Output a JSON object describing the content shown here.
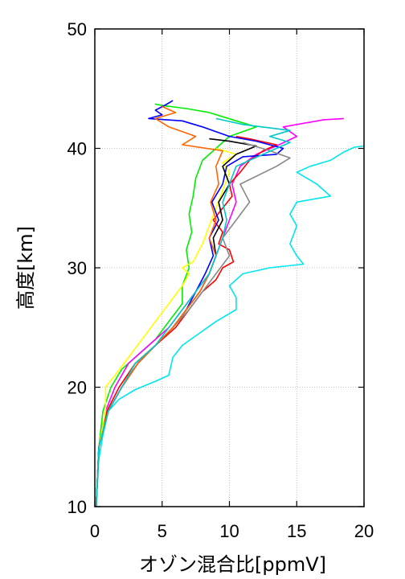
{
  "chart_data": {
    "type": "line",
    "xlabel": "オゾン混合比[ppmV]",
    "ylabel": "高度[km]",
    "xlim": [
      0,
      20
    ],
    "ylim": [
      10,
      50
    ],
    "xticks": [
      0,
      5,
      10,
      15,
      20
    ],
    "yticks": [
      10,
      20,
      30,
      40,
      50
    ],
    "grid": true,
    "series": [
      {
        "color": "#00e5ee",
        "points": [
          [
            0.1,
            10
          ],
          [
            0.3,
            14
          ],
          [
            0.6,
            16
          ],
          [
            1.0,
            18
          ],
          [
            1.8,
            19
          ],
          [
            3,
            19.8
          ],
          [
            4.5,
            20.5
          ],
          [
            5.5,
            21
          ],
          [
            5.8,
            22.5
          ],
          [
            6.5,
            23.5
          ],
          [
            7.5,
            24.3
          ],
          [
            9,
            25.5
          ],
          [
            10.5,
            26.5
          ],
          [
            10.5,
            27.5
          ],
          [
            10,
            28.5
          ],
          [
            11,
            29.5
          ],
          [
            13,
            30
          ],
          [
            15.5,
            30.3
          ],
          [
            15,
            31
          ],
          [
            14.5,
            32
          ],
          [
            15,
            33.5
          ],
          [
            14.5,
            34.5
          ],
          [
            15,
            35.5
          ],
          [
            17.5,
            36
          ],
          [
            16.5,
            37
          ],
          [
            15,
            38
          ],
          [
            16,
            38.5
          ],
          [
            17.5,
            39
          ],
          [
            18.5,
            39.7
          ],
          [
            19.3,
            40.1
          ],
          [
            20,
            40.2
          ]
        ]
      },
      {
        "color": "#00ee00",
        "points": [
          [
            0.1,
            10
          ],
          [
            0.3,
            15
          ],
          [
            0.6,
            18
          ],
          [
            1.2,
            20
          ],
          [
            2,
            21.5
          ],
          [
            3,
            22.5
          ],
          [
            4.5,
            24
          ],
          [
            5.5,
            25.5
          ],
          [
            6.5,
            27
          ],
          [
            6.5,
            28.5
          ],
          [
            7,
            30
          ],
          [
            6.8,
            31.5
          ],
          [
            7.2,
            33
          ],
          [
            7,
            34.5
          ],
          [
            7.3,
            36
          ],
          [
            7.5,
            37.5
          ],
          [
            8,
            39
          ],
          [
            9,
            40
          ],
          [
            10,
            41
          ],
          [
            12,
            41.8
          ],
          [
            10.5,
            42.3
          ],
          [
            8.5,
            43
          ],
          [
            7,
            43.3
          ],
          [
            5,
            43.6
          ],
          [
            4.5,
            43.7
          ],
          [
            5.5,
            43.5
          ]
        ]
      },
      {
        "color": "#ff00ff",
        "points": [
          [
            0.1,
            10
          ],
          [
            0.3,
            15
          ],
          [
            0.8,
            18
          ],
          [
            1.5,
            20
          ],
          [
            2.5,
            22
          ],
          [
            4,
            23.5
          ],
          [
            5.5,
            25
          ],
          [
            6.5,
            26.5
          ],
          [
            7.5,
            28
          ],
          [
            8.5,
            29.5
          ],
          [
            9,
            31
          ],
          [
            9.5,
            32.5
          ],
          [
            10,
            34
          ],
          [
            10.5,
            35.5
          ],
          [
            10.2,
            37
          ],
          [
            10.8,
            38.5
          ],
          [
            12,
            39.5
          ],
          [
            13.5,
            40.2
          ],
          [
            15,
            41
          ],
          [
            14,
            41.8
          ],
          [
            17,
            42.4
          ],
          [
            18.5,
            42.5
          ]
        ]
      },
      {
        "color": "#ff0000",
        "points": [
          [
            0.1,
            10
          ],
          [
            0.3,
            15
          ],
          [
            0.9,
            18
          ],
          [
            1.8,
            20
          ],
          [
            3,
            22
          ],
          [
            4.5,
            23.5
          ],
          [
            6,
            25
          ],
          [
            7,
            26.5
          ],
          [
            8,
            28
          ],
          [
            9,
            29
          ],
          [
            9.5,
            30
          ],
          [
            10.3,
            30.5
          ],
          [
            10,
            31.5
          ],
          [
            9.2,
            32
          ],
          [
            9.5,
            33
          ],
          [
            8.8,
            34
          ],
          [
            9.5,
            35
          ],
          [
            10.2,
            36
          ],
          [
            10,
            37
          ],
          [
            10.8,
            38
          ],
          [
            11.5,
            39
          ],
          [
            12.5,
            39.8
          ],
          [
            13.5,
            40.3
          ],
          [
            11.5,
            40.8
          ],
          [
            10.5,
            41
          ]
        ]
      },
      {
        "color": "#ffff00",
        "points": [
          [
            0.1,
            10
          ],
          [
            0.3,
            15
          ],
          [
            0.8,
            18
          ],
          [
            0.8,
            20
          ],
          [
            1.5,
            21
          ],
          [
            2.5,
            22.5
          ],
          [
            3.5,
            24
          ],
          [
            4.5,
            25.5
          ],
          [
            5.5,
            27
          ],
          [
            6.5,
            28.5
          ],
          [
            7,
            29.5
          ],
          [
            6.5,
            30
          ],
          [
            7.3,
            30.5
          ],
          [
            8,
            32
          ],
          [
            8.5,
            33.5
          ],
          [
            9,
            35
          ],
          [
            9.5,
            36.5
          ],
          [
            10,
            38
          ],
          [
            9.5,
            38.8
          ],
          [
            10.5,
            39.5
          ],
          [
            9,
            40
          ]
        ]
      },
      {
        "color": "#0000ff",
        "points": [
          [
            0.1,
            10
          ],
          [
            0.3,
            15
          ],
          [
            1,
            18
          ],
          [
            2,
            20
          ],
          [
            3.2,
            22
          ],
          [
            4.5,
            23.5
          ],
          [
            5.8,
            25
          ],
          [
            6.8,
            26.5
          ],
          [
            7.5,
            28
          ],
          [
            8.2,
            29.5
          ],
          [
            8.8,
            31
          ],
          [
            8.5,
            32.5
          ],
          [
            9.2,
            34
          ],
          [
            8.7,
            35.5
          ],
          [
            9.5,
            37
          ],
          [
            9.8,
            38.5
          ],
          [
            11,
            39.3
          ],
          [
            13.5,
            39.5
          ],
          [
            14,
            40
          ],
          [
            12,
            40.6
          ],
          [
            10,
            41
          ],
          [
            8,
            41.8
          ],
          [
            6.5,
            42.3
          ],
          [
            4,
            42.5
          ],
          [
            5,
            42.8
          ],
          [
            4.5,
            43.2
          ],
          [
            5.2,
            43.6
          ],
          [
            5.8,
            44
          ]
        ]
      },
      {
        "color": "#000000",
        "points": [
          [
            0.1,
            10
          ],
          [
            0.3,
            15
          ],
          [
            1,
            18
          ],
          [
            2,
            20
          ],
          [
            3.2,
            22
          ],
          [
            4.5,
            23.5
          ],
          [
            5.8,
            25
          ],
          [
            6.8,
            26.5
          ],
          [
            7.8,
            28
          ],
          [
            8.5,
            29.5
          ],
          [
            9,
            31
          ],
          [
            8.8,
            32.5
          ],
          [
            9.5,
            34
          ],
          [
            9.2,
            35.5
          ],
          [
            10,
            37
          ],
          [
            9.5,
            38.5
          ],
          [
            10.5,
            39.5
          ],
          [
            12,
            40.2
          ],
          [
            10,
            40.6
          ],
          [
            8.5,
            40.8
          ]
        ]
      },
      {
        "color": "#888888",
        "points": [
          [
            0.1,
            10
          ],
          [
            0.3,
            15
          ],
          [
            1,
            18
          ],
          [
            2,
            20
          ],
          [
            3.2,
            22
          ],
          [
            4.5,
            23.5
          ],
          [
            5.8,
            25
          ],
          [
            7,
            26.5
          ],
          [
            8,
            28
          ],
          [
            9,
            29.5
          ],
          [
            10,
            31
          ],
          [
            9.5,
            32.5
          ],
          [
            10.5,
            34
          ],
          [
            11.5,
            35.5
          ],
          [
            10.8,
            37
          ],
          [
            13.5,
            38.5
          ],
          [
            14.5,
            39.2
          ],
          [
            13,
            39.8
          ],
          [
            11,
            40.5
          ]
        ]
      },
      {
        "color": "#ff6600",
        "points": [
          [
            0.1,
            10
          ],
          [
            0.3,
            15
          ],
          [
            1,
            18
          ],
          [
            2,
            20
          ],
          [
            3.2,
            22
          ],
          [
            4.5,
            23.5
          ],
          [
            5.8,
            25
          ],
          [
            6.8,
            26.5
          ],
          [
            7.8,
            28
          ],
          [
            8.5,
            29.5
          ],
          [
            9,
            31
          ],
          [
            8.5,
            32.5
          ],
          [
            9,
            34
          ],
          [
            8.6,
            35.5
          ],
          [
            9.2,
            37
          ],
          [
            9,
            38.5
          ],
          [
            9.5,
            39.8
          ],
          [
            6.5,
            40.3
          ],
          [
            7.5,
            41
          ],
          [
            5.5,
            41.8
          ],
          [
            4.5,
            42.5
          ],
          [
            6,
            43
          ],
          [
            5,
            43.5
          ]
        ]
      },
      {
        "color": "#00c8c8",
        "points": [
          [
            0.1,
            10
          ],
          [
            0.3,
            15
          ],
          [
            1,
            18
          ],
          [
            2,
            20
          ],
          [
            3,
            22
          ],
          [
            4.5,
            23.5
          ],
          [
            5.5,
            25
          ],
          [
            6.5,
            26.5
          ],
          [
            7.5,
            28
          ],
          [
            8.5,
            29.5
          ],
          [
            9,
            31
          ],
          [
            9.5,
            32.5
          ],
          [
            9.8,
            34
          ],
          [
            9.5,
            35.5
          ],
          [
            10,
            37
          ],
          [
            10.5,
            38.5
          ],
          [
            12.5,
            39.5
          ],
          [
            14.5,
            40.5
          ],
          [
            13,
            41
          ],
          [
            14.5,
            41.5
          ],
          [
            11,
            42
          ],
          [
            9,
            42.5
          ]
        ]
      }
    ]
  }
}
